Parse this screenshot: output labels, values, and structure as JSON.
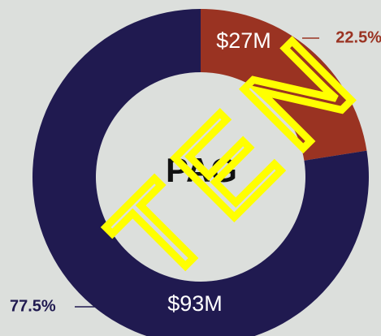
{
  "chart_data": {
    "type": "donut",
    "center_label": "PAG",
    "categories": [
      null,
      null
    ],
    "values": [
      22.5,
      77.5
    ],
    "value_labels": [
      "22.5%",
      "77.5%"
    ],
    "amounts": [
      27,
      93
    ],
    "amount_labels": [
      "$27M",
      "$93M"
    ],
    "colors": [
      "#9a3322",
      "#201a50"
    ],
    "watermark": "TEN"
  }
}
